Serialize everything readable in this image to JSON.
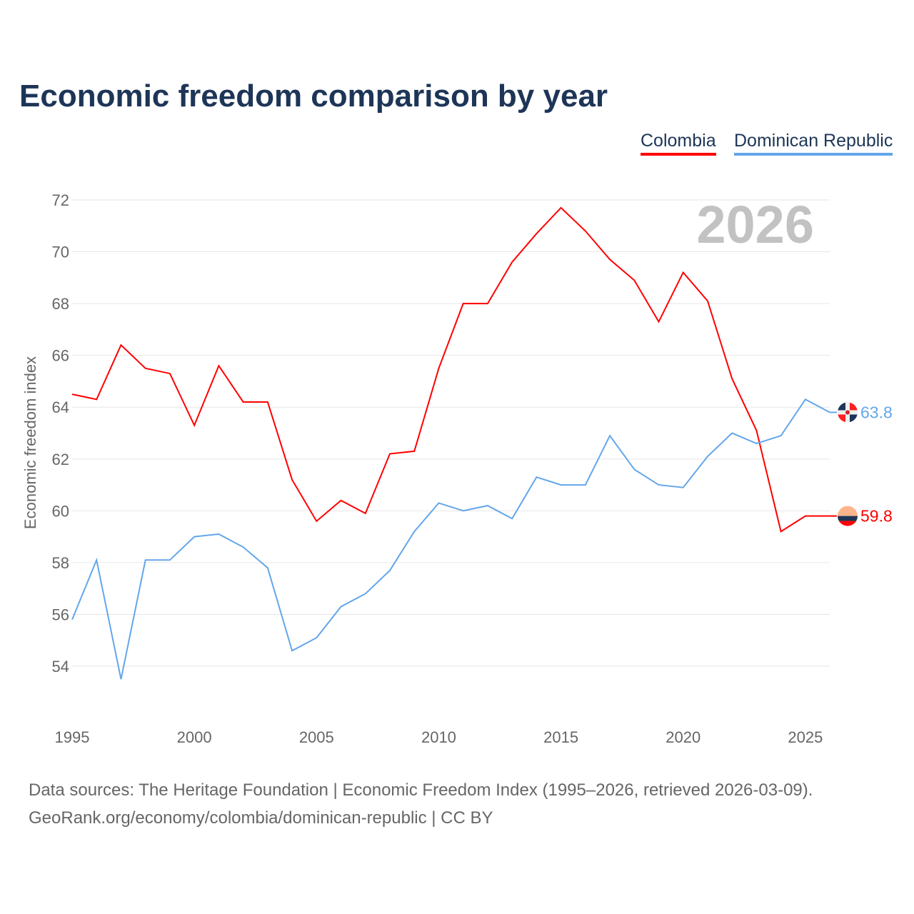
{
  "chart_data": {
    "type": "line",
    "title": "Economic freedom comparison by year",
    "ylabel": "Economic freedom index",
    "xlabel": "",
    "ylim": [
      52.5,
      72.5
    ],
    "xlim": [
      1995,
      2026
    ],
    "yticks": [
      54,
      56,
      58,
      60,
      62,
      64,
      66,
      68,
      70,
      72
    ],
    "xticks": [
      1995,
      2000,
      2005,
      2010,
      2015,
      2020,
      2025
    ],
    "grid": true,
    "legend_position": "top-right",
    "year_watermark": "2026",
    "x": [
      1995,
      1996,
      1997,
      1998,
      1999,
      2000,
      2001,
      2002,
      2003,
      2004,
      2005,
      2006,
      2007,
      2008,
      2009,
      2010,
      2011,
      2012,
      2013,
      2014,
      2015,
      2016,
      2017,
      2018,
      2019,
      2020,
      2021,
      2022,
      2023,
      2024,
      2025,
      2026
    ],
    "series": [
      {
        "name": "Colombia",
        "color": "#ff0000",
        "end_label": "59.8",
        "values": [
          64.5,
          64.3,
          66.4,
          65.5,
          65.3,
          63.3,
          65.6,
          64.2,
          64.2,
          61.2,
          59.6,
          60.4,
          59.9,
          62.2,
          62.3,
          65.5,
          68.0,
          68.0,
          69.6,
          70.7,
          71.7,
          70.8,
          69.7,
          68.9,
          67.3,
          69.2,
          68.1,
          65.1,
          63.1,
          59.2,
          59.8,
          59.8
        ]
      },
      {
        "name": "Dominican Republic",
        "color": "#63a6eb",
        "end_label": "63.8",
        "values": [
          55.8,
          58.1,
          53.5,
          58.1,
          58.1,
          59.0,
          59.1,
          58.6,
          57.8,
          54.6,
          55.1,
          56.3,
          56.8,
          57.7,
          59.2,
          60.3,
          60.0,
          60.2,
          59.7,
          61.3,
          61.0,
          61.0,
          62.9,
          61.6,
          61.0,
          60.9,
          62.1,
          63.0,
          62.6,
          62.9,
          64.3,
          63.8
        ]
      }
    ]
  },
  "source_line1": "Data sources: The Heritage Foundation | Economic Freedom Index (1995–2026, retrieved 2026-03-09).",
  "source_line2": "GeoRank.org/economy/colombia/dominican-republic | CC BY"
}
